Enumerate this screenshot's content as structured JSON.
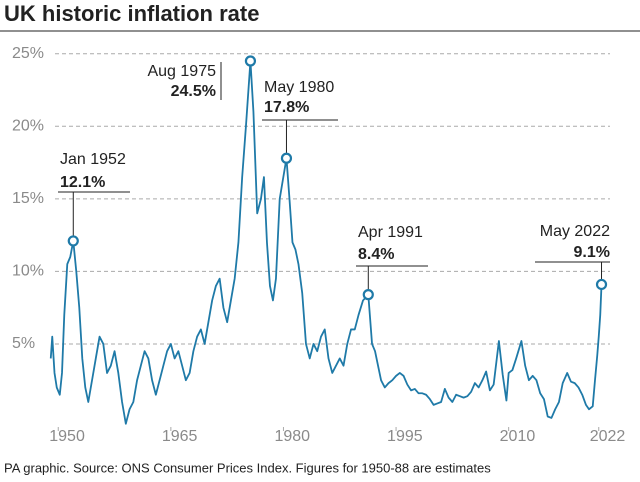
{
  "chart_data": {
    "type": "line",
    "title": "UK historic inflation rate",
    "source": "PA graphic. Source: ONS Consumer Prices Index. Figures for 1950-88 are estimates",
    "xlim": [
      1948.5,
      2023.5
    ],
    "xticks": [
      1950,
      1965,
      1980,
      1995,
      2010,
      2022
    ],
    "ylim": [
      -1,
      26.5
    ],
    "yticks": [
      {
        "value": 5,
        "label": "5%"
      },
      {
        "value": 10,
        "label": "10%"
      },
      {
        "value": 15,
        "label": "15%"
      },
      {
        "value": 20,
        "label": "20%"
      },
      {
        "value": 25,
        "label": "25%"
      }
    ],
    "grid": true,
    "x": [
      1949.0,
      1949.2,
      1949.5,
      1949.8,
      1950.2,
      1950.5,
      1950.8,
      1951.2,
      1951.6,
      1952.0,
      1952.4,
      1952.8,
      1953.2,
      1953.6,
      1954.0,
      1954.5,
      1955.0,
      1955.5,
      1956.0,
      1956.5,
      1957.0,
      1957.5,
      1958.0,
      1958.5,
      1959.0,
      1959.5,
      1960.0,
      1960.5,
      1961.0,
      1961.5,
      1962.0,
      1962.5,
      1963.0,
      1963.5,
      1964.0,
      1964.5,
      1965.0,
      1965.5,
      1966.0,
      1966.5,
      1967.0,
      1967.5,
      1968.0,
      1968.5,
      1969.0,
      1969.5,
      1970.0,
      1970.5,
      1971.0,
      1971.5,
      1972.0,
      1972.5,
      1973.0,
      1973.5,
      1974.0,
      1974.5,
      1975.0,
      1975.6,
      1976.0,
      1976.5,
      1977.0,
      1977.4,
      1977.8,
      1978.2,
      1978.6,
      1979.0,
      1979.5,
      1980.4,
      1980.8,
      1981.2,
      1981.6,
      1982.0,
      1982.5,
      1983.0,
      1983.5,
      1984.0,
      1984.5,
      1985.0,
      1985.5,
      1986.0,
      1986.5,
      1987.0,
      1987.5,
      1988.0,
      1988.5,
      1989.0,
      1989.5,
      1990.0,
      1990.6,
      1991.3,
      1991.8,
      1992.2,
      1992.6,
      1993.0,
      1993.5,
      1994.0,
      1994.5,
      1995.0,
      1995.5,
      1996.0,
      1996.5,
      1997.0,
      1997.5,
      1998.0,
      1998.5,
      1999.0,
      1999.5,
      2000.0,
      2000.5,
      2001.0,
      2001.5,
      2002.0,
      2002.5,
      2003.0,
      2003.5,
      2004.0,
      2004.5,
      2005.0,
      2005.5,
      2006.0,
      2006.5,
      2007.0,
      2007.5,
      2008.0,
      2008.7,
      2009.2,
      2009.7,
      2010.0,
      2010.5,
      2011.0,
      2011.7,
      2012.2,
      2012.7,
      2013.2,
      2013.7,
      2014.2,
      2014.7,
      2015.2,
      2015.7,
      2016.2,
      2016.7,
      2017.2,
      2017.8,
      2018.3,
      2018.8,
      2019.3,
      2019.8,
      2020.3,
      2020.7,
      2021.2,
      2021.5,
      2021.8,
      2022.0,
      2022.2,
      2022.37
    ],
    "series": [
      {
        "color": "#1f7aa8",
        "values": [
          4.0,
          5.5,
          3.0,
          2.0,
          1.5,
          3.0,
          7.0,
          10.5,
          11.0,
          12.1,
          10.0,
          7.5,
          4.0,
          2.0,
          1.0,
          2.5,
          4.0,
          5.5,
          5.0,
          3.0,
          3.5,
          4.5,
          3.0,
          1.0,
          -0.5,
          0.5,
          1.0,
          2.5,
          3.5,
          4.5,
          4.0,
          2.5,
          1.5,
          2.5,
          3.5,
          4.5,
          5.0,
          4.0,
          4.5,
          3.5,
          2.5,
          3.0,
          4.5,
          5.5,
          6.0,
          5.0,
          6.5,
          8.0,
          9.0,
          9.5,
          7.5,
          6.5,
          8.0,
          9.5,
          12.0,
          16.5,
          20.0,
          24.5,
          21.0,
          14.0,
          15.0,
          16.5,
          12.0,
          9.0,
          8.0,
          9.5,
          15.0,
          17.8,
          15.0,
          12.0,
          11.5,
          10.5,
          8.5,
          5.0,
          4.0,
          5.0,
          4.5,
          5.5,
          6.0,
          4.0,
          3.0,
          3.5,
          4.0,
          3.5,
          5.0,
          6.0,
          6.0,
          7.0,
          8.0,
          8.4,
          5.0,
          4.5,
          3.5,
          2.5,
          2.0,
          2.3,
          2.5,
          2.8,
          3.0,
          2.8,
          2.2,
          1.8,
          1.9,
          1.6,
          1.6,
          1.5,
          1.2,
          0.8,
          0.9,
          1.0,
          1.9,
          1.3,
          1.0,
          1.5,
          1.4,
          1.3,
          1.4,
          1.7,
          2.3,
          2.0,
          2.5,
          3.1,
          1.8,
          2.2,
          5.2,
          2.9,
          1.1,
          3.0,
          3.2,
          4.0,
          5.2,
          3.5,
          2.5,
          2.8,
          2.5,
          1.6,
          1.2,
          0.0,
          -0.1,
          0.5,
          1.0,
          2.3,
          3.0,
          2.4,
          2.3,
          2.0,
          1.5,
          0.8,
          0.5,
          0.7,
          2.5,
          4.2,
          5.5,
          7.0,
          9.1
        ]
      }
    ],
    "annotations": [
      {
        "label": "Jan 1952",
        "x": 1952.0,
        "y": {
          "value": 12.1,
          "label": "12.1%"
        }
      },
      {
        "label": "Aug 1975",
        "x": 1975.6,
        "y": {
          "value": 24.5,
          "label": "24.5%"
        }
      },
      {
        "label": "May 1980",
        "x": 1980.4,
        "y": {
          "value": 17.8,
          "label": "17.8%"
        }
      },
      {
        "label": "Apr 1991",
        "x": 1991.3,
        "y": {
          "value": 8.4,
          "label": "8.4%"
        }
      },
      {
        "label": "May 2022",
        "x": 2022.37,
        "y": {
          "value": 9.1,
          "label": "9.1%"
        }
      }
    ]
  }
}
